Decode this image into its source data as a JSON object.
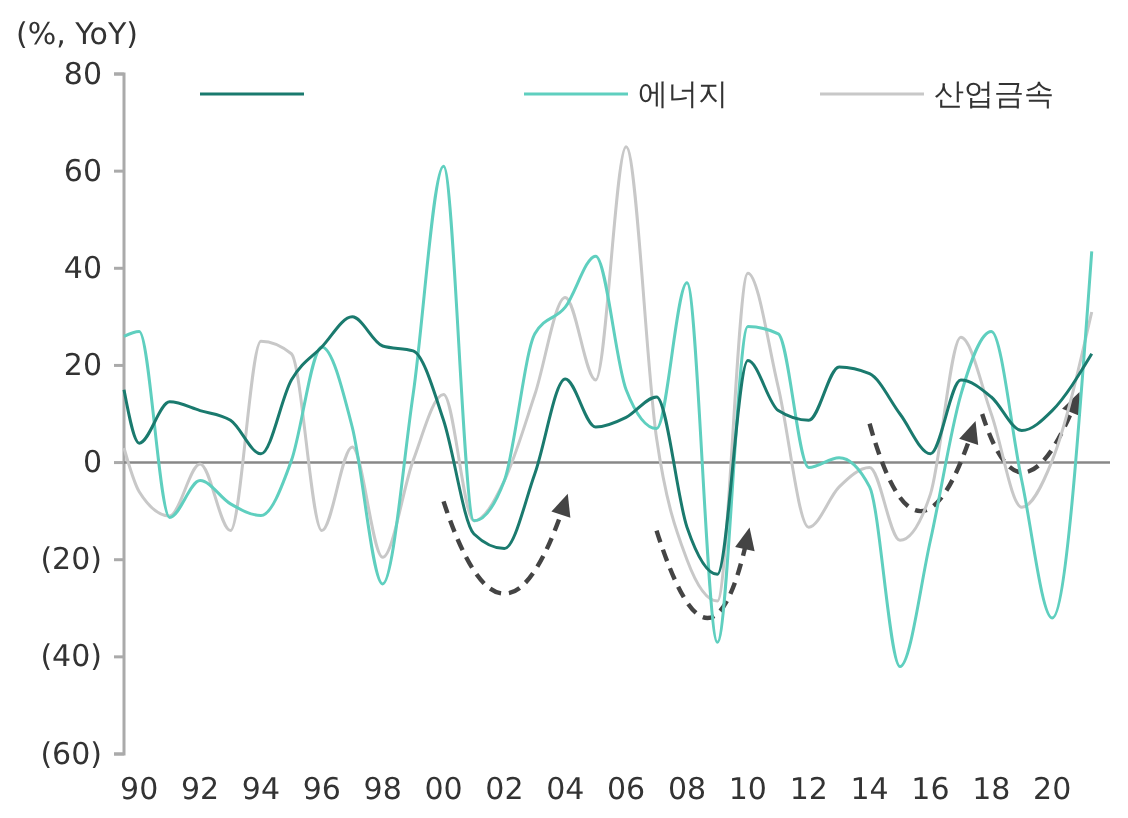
{
  "chart_data": {
    "type": "line",
    "ylabel": "(%, YoY)",
    "x": [
      1989.5,
      1990,
      1991,
      1992,
      1993,
      1994,
      1995,
      1996,
      1997,
      1998,
      1999,
      2000,
      2001,
      2002,
      2003,
      2004,
      2005,
      2006,
      2007,
      2008,
      2009,
      2010,
      2011,
      2012,
      2013,
      2014,
      2015,
      2016,
      2017,
      2018,
      2019,
      2020,
      2021.3
    ],
    "series": [
      {
        "color": "#1a7a6e",
        "values": [
          15,
          4,
          12.5,
          10.7,
          8.7,
          1.8,
          17,
          23.8,
          30,
          24,
          23,
          8.7,
          -14.7,
          -17.7,
          -2.3,
          17.2,
          7.3,
          9.3,
          13.5,
          -13.3,
          -23,
          21,
          10.7,
          8.7,
          19.7,
          18.3,
          10,
          1.8,
          17,
          13.5,
          6.6,
          10.7,
          22.4
        ]
      },
      {
        "name": "에너지",
        "color": "#5fcfbf",
        "values": [
          26,
          27,
          -11.3,
          -3.7,
          -8.5,
          -10.9,
          0.4,
          23.8,
          7.3,
          -25,
          14,
          61,
          -12,
          -3.7,
          26.5,
          32,
          42.5,
          15,
          7,
          37,
          -37,
          28,
          26.5,
          -1,
          1,
          -5,
          -42,
          -16,
          14,
          27,
          -3.7,
          -32,
          43.5
        ]
      },
      {
        "name": "산업금속",
        "color": "#c8c8c8",
        "values": [
          3,
          -6,
          -11,
          -0.3,
          -14,
          25,
          22.4,
          -14,
          3.2,
          -19.5,
          0.4,
          14,
          -12,
          -3.7,
          14,
          34,
          17,
          65,
          5,
          -20,
          -28.5,
          39,
          15.5,
          -13.3,
          -5,
          -1,
          -16,
          -6.5,
          25.8,
          10,
          -9.2,
          0.4,
          31
        ]
      }
    ],
    "xlim": [
      1989.5,
      2021.9
    ],
    "xticks": [
      {
        "value": 1990,
        "label": "90"
      },
      {
        "value": 1992,
        "label": "92"
      },
      {
        "value": 1994,
        "label": "94"
      },
      {
        "value": 1996,
        "label": "96"
      },
      {
        "value": 1998,
        "label": "98"
      },
      {
        "value": 2000,
        "label": "00"
      },
      {
        "value": 2002,
        "label": "02"
      },
      {
        "value": 2004,
        "label": "04"
      },
      {
        "value": 2006,
        "label": "06"
      },
      {
        "value": 2008,
        "label": "08"
      },
      {
        "value": 2010,
        "label": "10"
      },
      {
        "value": 2012,
        "label": "12"
      },
      {
        "value": 2014,
        "label": "14"
      },
      {
        "value": 2016,
        "label": "16"
      },
      {
        "value": 2018,
        "label": "18"
      },
      {
        "value": 2020,
        "label": "20"
      }
    ],
    "ylim": [
      -60,
      80
    ],
    "yticks": [
      {
        "value": -60,
        "label": "(60)"
      },
      {
        "value": -40,
        "label": "(40)"
      },
      {
        "value": -20,
        "label": "(20)"
      },
      0,
      20,
      40,
      60,
      80
    ],
    "ref_lines": [
      {
        "axis": "y",
        "value": 0,
        "color": "#888888"
      }
    ],
    "legend": "top",
    "marker": "none",
    "line_style": "solid"
  }
}
